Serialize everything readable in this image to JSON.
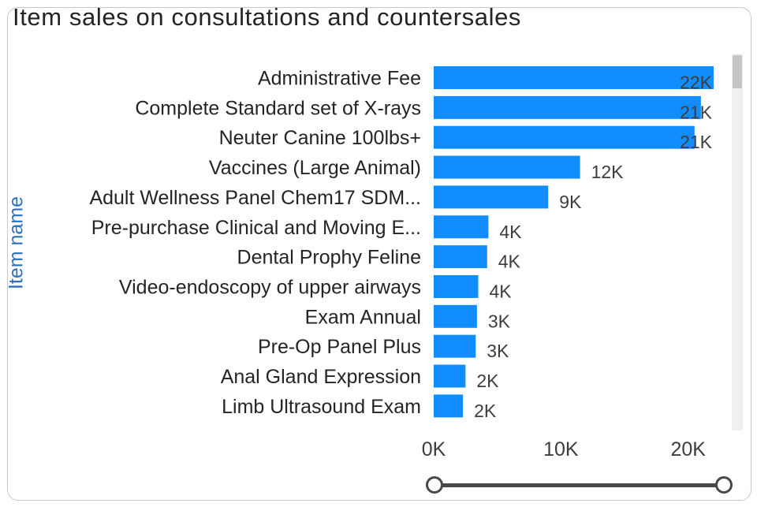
{
  "chart_data": {
    "type": "bar",
    "orientation": "horizontal",
    "title": "Item sales on consultations and countersales",
    "ylabel": "Item name",
    "xlabel": "",
    "categories": [
      "Administrative Fee",
      "Complete Standard set of X-rays",
      "Neuter Canine 100lbs+",
      "Vaccines (Large Animal)",
      "Adult Wellness Panel Chem17 SDM...",
      "Pre-purchase Clinical and Moving E...",
      "Dental Prophy Feline",
      "Video-endoscopy of upper airways",
      "Exam Annual",
      "Pre-Op Panel Plus",
      "Anal Gland Expression",
      "Limb Ultrasound Exam"
    ],
    "values": [
      22000,
      21000,
      20500,
      11500,
      9000,
      4300,
      4200,
      3500,
      3400,
      3300,
      2500,
      2300
    ],
    "data_labels": [
      "22K",
      "21K",
      "21K",
      "12K",
      "9K",
      "4K",
      "4K",
      "4K",
      "3K",
      "3K",
      "2K",
      "2K"
    ],
    "xlim": [
      0,
      22000
    ],
    "x_ticks": [
      {
        "value": 0,
        "label": "0K"
      },
      {
        "value": 10000,
        "label": "10K"
      },
      {
        "value": 20000,
        "label": "20K"
      }
    ],
    "bar_color": "#118dff",
    "grid": false,
    "legend": "none"
  },
  "colors": {
    "title": "#252423",
    "axis_title": "#2c6fbe",
    "labels": "#252423",
    "data_labels": "#3d3d3d"
  }
}
